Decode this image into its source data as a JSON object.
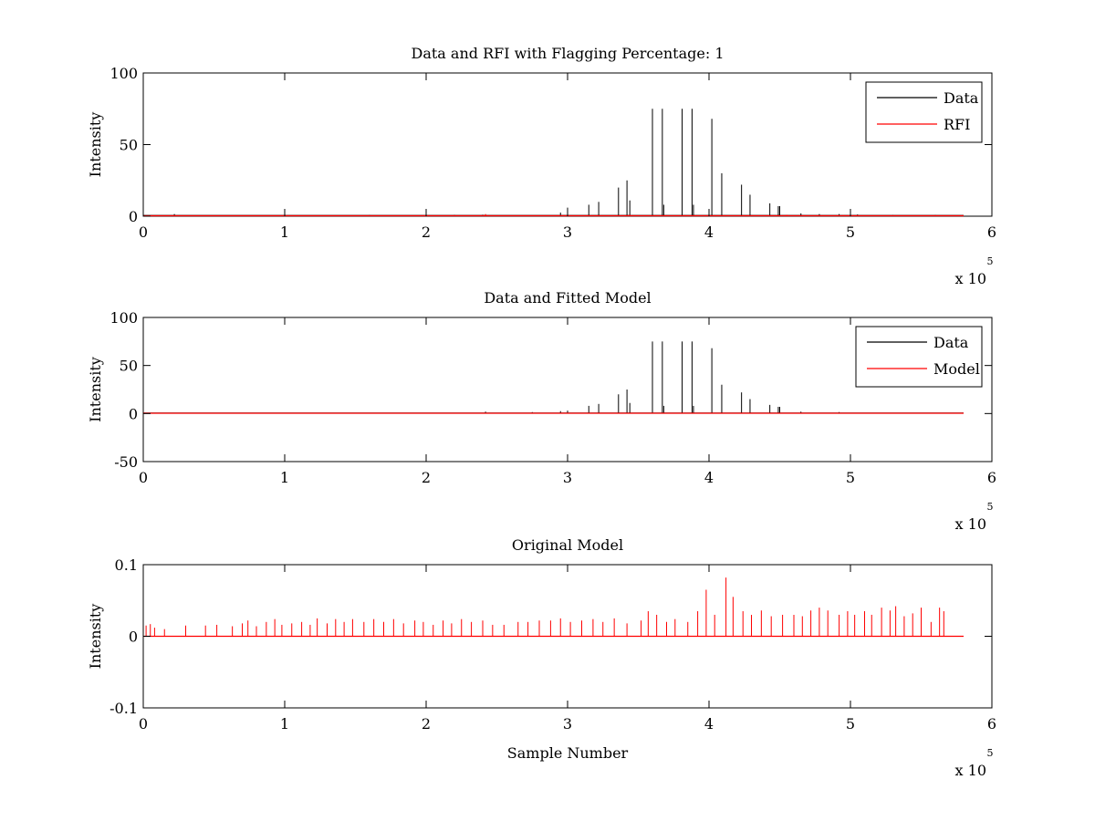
{
  "chart_data": [
    {
      "type": "line",
      "title": "Data and RFI with Flagging Percentage: 1",
      "ylabel": "Intensity",
      "xlabel": "",
      "xlim": [
        0,
        6
      ],
      "ylim": [
        0,
        100
      ],
      "xticks": [
        "0",
        "1",
        "2",
        "3",
        "4",
        "5",
        "6"
      ],
      "yticks": [
        "0",
        "50",
        "100"
      ],
      "x_multiplier": {
        "base": "x 10",
        "exp": "5"
      },
      "legend": {
        "position": "top-right",
        "entries": [
          {
            "label": "Data",
            "color": "#000000"
          },
          {
            "label": "RFI",
            "color": "#ff0000"
          }
        ]
      },
      "series": [
        {
          "name": "Data",
          "color": "#000000",
          "baseline": 0.5,
          "x_end": 5.8,
          "spikes": [
            [
              0.22,
              1.5
            ],
            [
              1.0,
              0.8
            ],
            [
              1.6,
              0.8
            ],
            [
              2.2,
              0.9
            ],
            [
              2.4,
              1.0
            ],
            [
              2.95,
              2.5
            ],
            [
              3.0,
              6
            ],
            [
              3.15,
              8
            ],
            [
              3.22,
              10
            ],
            [
              3.36,
              20
            ],
            [
              3.42,
              25
            ],
            [
              3.44,
              11
            ],
            [
              3.6,
              75
            ],
            [
              3.67,
              75
            ],
            [
              3.68,
              8
            ],
            [
              3.81,
              75
            ],
            [
              3.88,
              75
            ],
            [
              3.89,
              8
            ],
            [
              4.02,
              68
            ],
            [
              4.0,
              5
            ],
            [
              4.09,
              30
            ],
            [
              4.23,
              22
            ],
            [
              4.29,
              15
            ],
            [
              4.43,
              9
            ],
            [
              4.49,
              7
            ],
            [
              4.5,
              7
            ],
            [
              4.65,
              2
            ],
            [
              4.78,
              1.5
            ],
            [
              4.92,
              1.5
            ],
            [
              5.05,
              1.2
            ],
            [
              5.3,
              0.8
            ],
            [
              5.6,
              0.8
            ]
          ]
        },
        {
          "name": "RFI",
          "color": "#ff0000",
          "baseline": 0.3,
          "x_end": 5.8,
          "spikes": [
            [
              2.42,
              1.5
            ],
            [
              3.44,
              1.0
            ],
            [
              4.55,
              1.0
            ],
            [
              4.95,
              0.8
            ]
          ]
        }
      ]
    },
    {
      "type": "line",
      "title": "Data and Fitted Model",
      "ylabel": "Intensity",
      "xlabel": "",
      "xlim": [
        0,
        6
      ],
      "ylim": [
        -50,
        100
      ],
      "xticks": [
        "0",
        "1",
        "2",
        "3",
        "4",
        "5",
        "6"
      ],
      "yticks": [
        "-50",
        "0",
        "50",
        "100"
      ],
      "x_multiplier": {
        "base": "x 10",
        "exp": "5"
      },
      "legend": {
        "position": "top-right",
        "entries": [
          {
            "label": "Data",
            "color": "#000000"
          },
          {
            "label": "Model",
            "color": "#ff0000"
          }
        ]
      },
      "series": [
        {
          "name": "Data",
          "color": "#000000",
          "baseline": 0.5,
          "x_end": 5.8,
          "spikes": [
            [
              2.42,
              2
            ],
            [
              2.75,
              1.5
            ],
            [
              2.95,
              2.5
            ],
            [
              3.0,
              3
            ],
            [
              3.15,
              8
            ],
            [
              3.22,
              10
            ],
            [
              3.36,
              20
            ],
            [
              3.42,
              25
            ],
            [
              3.44,
              11
            ],
            [
              3.6,
              75
            ],
            [
              3.67,
              75
            ],
            [
              3.68,
              8
            ],
            [
              3.81,
              75
            ],
            [
              3.88,
              75
            ],
            [
              3.89,
              8
            ],
            [
              4.02,
              68
            ],
            [
              4.09,
              30
            ],
            [
              4.23,
              22
            ],
            [
              4.29,
              15
            ],
            [
              4.43,
              9
            ],
            [
              4.49,
              7
            ],
            [
              4.5,
              7
            ],
            [
              4.65,
              2
            ],
            [
              4.92,
              1.5
            ]
          ]
        },
        {
          "name": "Model",
          "color": "#ff0000",
          "baseline": 0.3,
          "x_end": 5.8,
          "spikes": []
        }
      ]
    },
    {
      "type": "line",
      "title": "Original Model",
      "ylabel": "Intensity",
      "xlabel": "Sample Number",
      "xlim": [
        0,
        6
      ],
      "ylim": [
        -0.1,
        0.1
      ],
      "xticks": [
        "0",
        "1",
        "2",
        "3",
        "4",
        "5",
        "6"
      ],
      "yticks": [
        "-0.1",
        "0",
        "0.1"
      ],
      "x_multiplier": {
        "base": "x 10",
        "exp": "5"
      },
      "series": [
        {
          "color": "#ff0000",
          "baseline": 0,
          "x_end": 5.8,
          "spikes": [
            [
              0.02,
              0.015
            ],
            [
              0.05,
              0.017
            ],
            [
              0.08,
              0.012
            ],
            [
              0.15,
              0.01
            ],
            [
              0.3,
              0.015
            ],
            [
              0.44,
              0.015
            ],
            [
              0.52,
              0.016
            ],
            [
              0.63,
              0.014
            ],
            [
              0.7,
              0.018
            ],
            [
              0.74,
              0.022
            ],
            [
              0.8,
              0.014
            ],
            [
              0.87,
              0.02
            ],
            [
              0.93,
              0.024
            ],
            [
              0.98,
              0.016
            ],
            [
              1.05,
              0.018
            ],
            [
              1.12,
              0.02
            ],
            [
              1.18,
              0.016
            ],
            [
              1.23,
              0.025
            ],
            [
              1.3,
              0.018
            ],
            [
              1.36,
              0.024
            ],
            [
              1.42,
              0.02
            ],
            [
              1.48,
              0.024
            ],
            [
              1.56,
              0.02
            ],
            [
              1.63,
              0.024
            ],
            [
              1.7,
              0.02
            ],
            [
              1.77,
              0.024
            ],
            [
              1.84,
              0.018
            ],
            [
              1.92,
              0.022
            ],
            [
              1.98,
              0.02
            ],
            [
              2.05,
              0.016
            ],
            [
              2.12,
              0.022
            ],
            [
              2.18,
              0.018
            ],
            [
              2.25,
              0.024
            ],
            [
              2.32,
              0.02
            ],
            [
              2.4,
              0.022
            ],
            [
              2.47,
              0.016
            ],
            [
              2.55,
              0.016
            ],
            [
              2.65,
              0.02
            ],
            [
              2.72,
              0.02
            ],
            [
              2.8,
              0.022
            ],
            [
              2.88,
              0.022
            ],
            [
              2.95,
              0.025
            ],
            [
              3.02,
              0.02
            ],
            [
              3.1,
              0.022
            ],
            [
              3.18,
              0.024
            ],
            [
              3.25,
              0.02
            ],
            [
              3.33,
              0.025
            ],
            [
              3.42,
              0.018
            ],
            [
              3.52,
              0.022
            ],
            [
              3.57,
              0.035
            ],
            [
              3.63,
              0.03
            ],
            [
              3.7,
              0.02
            ],
            [
              3.76,
              0.024
            ],
            [
              3.85,
              0.02
            ],
            [
              3.92,
              0.035
            ],
            [
              3.98,
              0.065
            ],
            [
              4.04,
              0.03
            ],
            [
              4.12,
              0.082
            ],
            [
              4.17,
              0.055
            ],
            [
              4.24,
              0.035
            ],
            [
              4.3,
              0.03
            ],
            [
              4.37,
              0.036
            ],
            [
              4.44,
              0.028
            ],
            [
              4.52,
              0.03
            ],
            [
              4.6,
              0.03
            ],
            [
              4.66,
              0.028
            ],
            [
              4.72,
              0.036
            ],
            [
              4.78,
              0.04
            ],
            [
              4.84,
              0.036
            ],
            [
              4.92,
              0.03
            ],
            [
              4.98,
              0.035
            ],
            [
              5.03,
              0.03
            ],
            [
              5.1,
              0.035
            ],
            [
              5.15,
              0.03
            ],
            [
              5.22,
              0.04
            ],
            [
              5.28,
              0.036
            ],
            [
              5.32,
              0.042
            ],
            [
              5.38,
              0.028
            ],
            [
              5.44,
              0.032
            ],
            [
              5.5,
              0.04
            ],
            [
              5.57,
              0.02
            ],
            [
              5.63,
              0.04
            ],
            [
              5.66,
              0.035
            ]
          ]
        }
      ]
    }
  ]
}
